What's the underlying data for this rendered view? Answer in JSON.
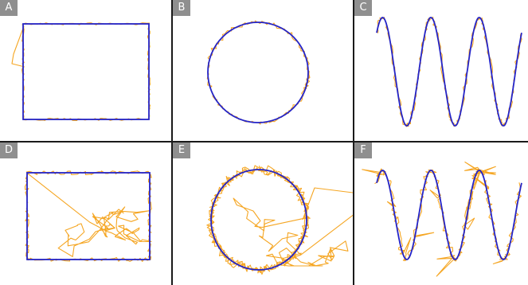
{
  "colors": {
    "reference": "#2424c8",
    "trace": "#f5a623",
    "label_bg": "#8f8f8f",
    "label_text": "#ffffff",
    "divider": "#1a1a1a",
    "background": "#ffffff"
  },
  "panels": [
    {
      "id": "A",
      "label": "A",
      "shape": "rectangle",
      "trace_style": "tight"
    },
    {
      "id": "B",
      "label": "B",
      "shape": "circle",
      "trace_style": "tight"
    },
    {
      "id": "C",
      "label": "C",
      "shape": "sine",
      "trace_style": "tight"
    },
    {
      "id": "D",
      "label": "D",
      "shape": "rectangle",
      "trace_style": "wandering"
    },
    {
      "id": "E",
      "label": "E",
      "shape": "circle",
      "trace_style": "wandering"
    },
    {
      "id": "F",
      "label": "F",
      "shape": "sine",
      "trace_style": "wandering"
    }
  ]
}
